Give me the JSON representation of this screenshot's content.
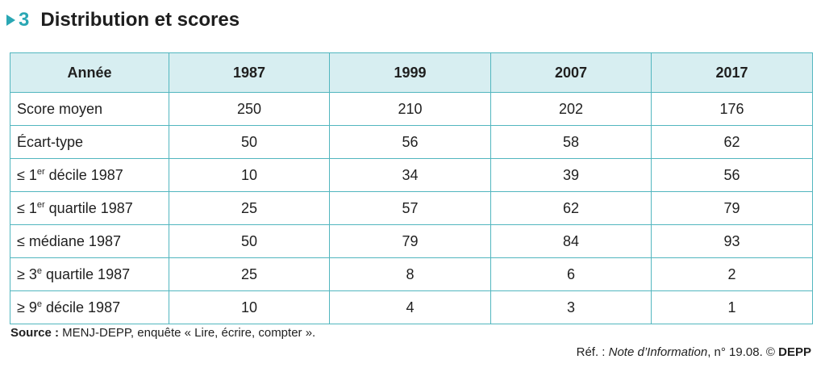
{
  "heading": {
    "number": "3",
    "title": "Distribution et scores",
    "accent_color": "#2aa7b4",
    "arrow_icon": "triangle-right-icon"
  },
  "table": {
    "header_label": "Année",
    "years": [
      "1987",
      "1999",
      "2007",
      "2017"
    ],
    "header_bg": "#d7eef1",
    "border_color": "#52b6bf",
    "rows": [
      {
        "label_prefix": "Score moyen",
        "label_sup": "",
        "label_suffix": "",
        "values": [
          "250",
          "210",
          "202",
          "176"
        ]
      },
      {
        "label_prefix": "Écart-type",
        "label_sup": "",
        "label_suffix": "",
        "values": [
          "50",
          "56",
          "58",
          "62"
        ]
      },
      {
        "label_prefix": "≤ 1",
        "label_sup": "er",
        "label_suffix": " décile 1987",
        "values": [
          "10",
          "34",
          "39",
          "56"
        ]
      },
      {
        "label_prefix": "≤ 1",
        "label_sup": "er",
        "label_suffix": " quartile 1987",
        "values": [
          "25",
          "57",
          "62",
          "79"
        ]
      },
      {
        "label_prefix": "≤ médiane 1987",
        "label_sup": "",
        "label_suffix": "",
        "values": [
          "50",
          "79",
          "84",
          "93"
        ]
      },
      {
        "label_prefix": "≥ 3",
        "label_sup": "e",
        "label_suffix": " quartile 1987",
        "values": [
          "25",
          "8",
          "6",
          "2"
        ]
      },
      {
        "label_prefix": "≥ 9",
        "label_sup": "e",
        "label_suffix": " décile 1987",
        "values": [
          "10",
          "4",
          "3",
          "1"
        ]
      }
    ]
  },
  "footer": {
    "source_label": "Source :",
    "source_text": " MENJ-DEPP, enquête « Lire, écrire, compter ».",
    "ref_prefix": "Réf. : ",
    "ref_italic": "Note d’Information",
    "ref_middle": ", n° 19.08. © ",
    "ref_bold": "DEPP"
  }
}
